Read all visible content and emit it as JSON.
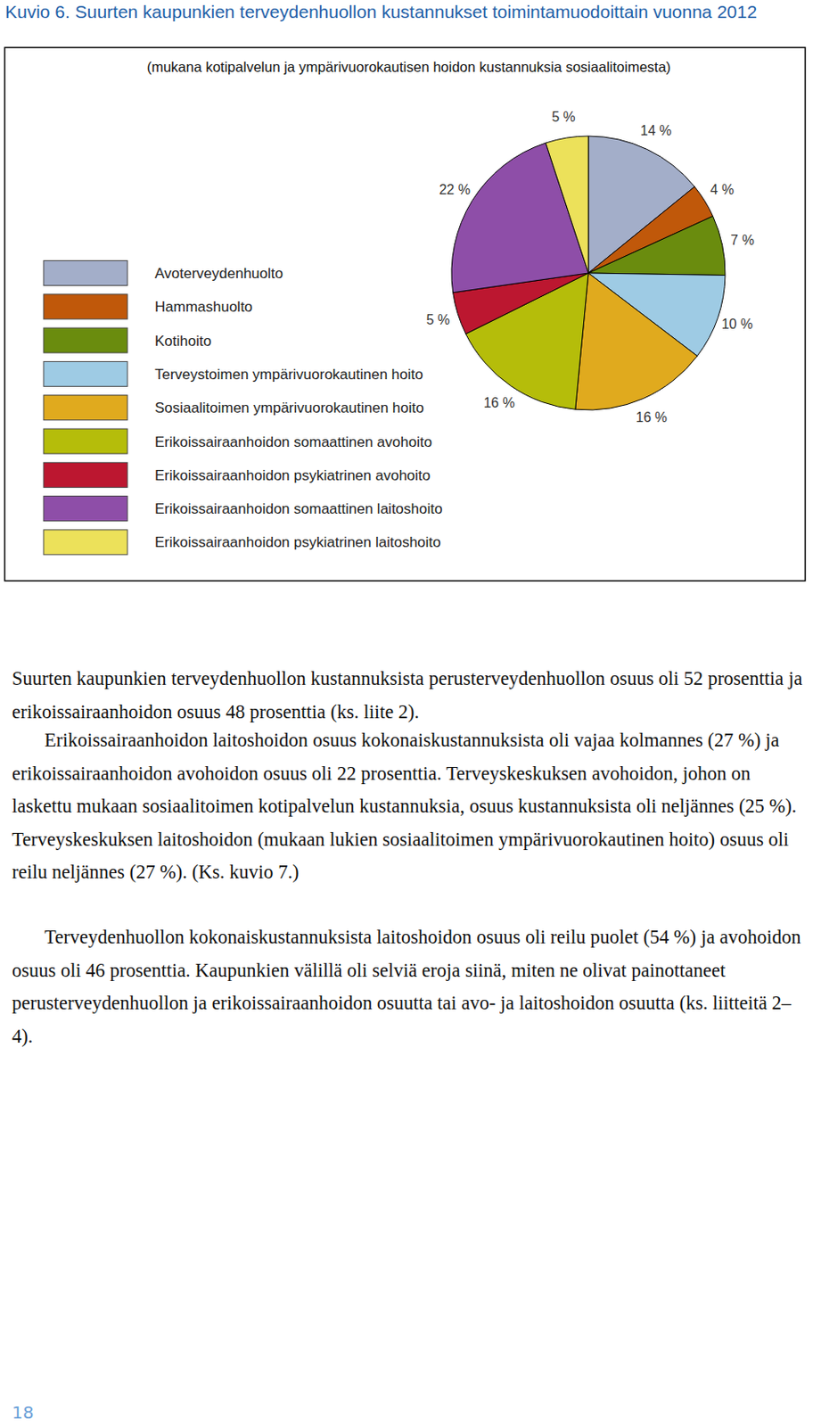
{
  "chart_data": {
    "type": "pie",
    "title": "Kuvio 6.  Suurten kaupunkien terveydenhuollon kustannukset toimintamuodoittain vuonna 2012",
    "subtitle": "(mukana kotipalvelun ja ympärivuorokautisen hoidon kustannuksia sosiaalitoimesta)",
    "categories": [
      "Avoterveydenhuolto",
      "Hammashuolto",
      "Kotihoito",
      "Terveystoimen ympärivuorokautinen hoito",
      "Sosiaalitoimen ympärivuorokautinen hoito",
      "Erikoissairaanhoidon somaattinen avohoito",
      "Erikoissairaanhoidon psykiatrinen avohoito",
      "Erikoissairaanhoidon somaattinen laitoshoito",
      "Erikoissairaanhoidon psykiatrinen laitoshoito"
    ],
    "values": [
      14,
      4,
      7,
      10,
      16,
      16,
      5,
      22,
      5
    ],
    "value_labels": [
      "14 %",
      "4 %",
      "7 %",
      "10 %",
      "16 %",
      "16 %",
      "5 %",
      "22 %",
      "5 %"
    ],
    "colors": [
      "#a3aec9",
      "#c0580a",
      "#6a8c0e",
      "#9ecbe4",
      "#e0aa1e",
      "#b5bd0a",
      "#bc1730",
      "#8e4ea8",
      "#ece15a"
    ],
    "data_labels": true,
    "legend": "left"
  },
  "paragraphs": [
    "Suurten kaupunkien terveydenhuollon kustannuksista perusterveydenhuollon osuus oli 52 prosenttia ja erikoissairaanhoidon osuus 48 prosenttia (ks. liite 2).",
    "Erikoissairaanhoidon laitoshoidon osuus kokonaiskustannuksista oli vajaa kolmannes (27 %) ja erikoissairaanhoidon avohoidon osuus oli 22 prosenttia. Terveyskeskuksen avohoidon, johon on laskettu mukaan sosiaalitoimen kotipalvelun kustannuksia, osuus kustannuksista oli neljännes (25 %). Terveyskeskuksen laitoshoidon (mukaan lukien sosiaalitoimen ympärivuorokautinen hoito) osuus oli reilu neljännes (27 %). (Ks. kuvio 7.)",
    "Terveydenhuollon kokonaiskustannuksista laitoshoidon osuus oli reilu puolet (54 %) ja avohoidon osuus oli 46 prosenttia. Kaupunkien välillä oli selviä eroja siinä, miten ne olivat painottaneet perusterveydenhuollon ja erikoissairaanhoidon osuutta tai avo- ja laitoshoidon osuutta (ks. liitteitä 2–4)."
  ],
  "page_number": "18"
}
